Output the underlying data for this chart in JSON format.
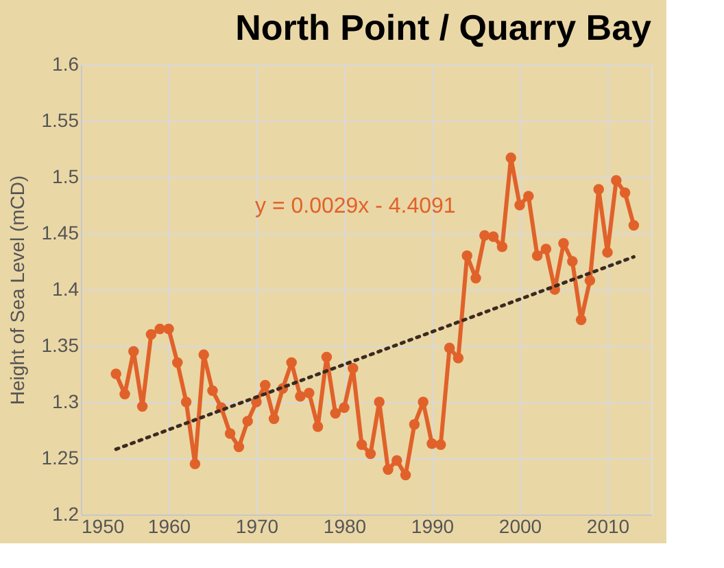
{
  "chart_data": {
    "type": "line",
    "title": "North Point / Quarry Bay",
    "ylabel": "Height of Sea Level (mCD)",
    "xlim": [
      1950,
      2015
    ],
    "xticks": [
      1950,
      1960,
      1970,
      1980,
      1990,
      2000,
      2010
    ],
    "ylim": [
      1.2,
      1.6
    ],
    "yticks": [
      1.2,
      1.25,
      1.3,
      1.35,
      1.4,
      1.45,
      1.5,
      1.55,
      1.6
    ],
    "grid": true,
    "marker": "circle",
    "annotations": [
      "y = 0.0029x - 4.4091"
    ],
    "series": [
      {
        "color": "#e0622a",
        "line_style": "solid",
        "x": [
          1954,
          1955,
          1956,
          1957,
          1958,
          1959,
          1960,
          1961,
          1962,
          1963,
          1964,
          1965,
          1966,
          1967,
          1968,
          1969,
          1970,
          1971,
          1972,
          1973,
          1974,
          1975,
          1976,
          1977,
          1978,
          1979,
          1980,
          1981,
          1982,
          1983,
          1984,
          1985,
          1986,
          1987,
          1988,
          1989,
          1990,
          1991,
          1992,
          1993,
          1994,
          1995,
          1996,
          1997,
          1998,
          1999,
          2000,
          2001,
          2002,
          2003,
          2004,
          2005,
          2006,
          2007,
          2008,
          2009,
          2010,
          2011,
          2012,
          2013
        ],
        "values": [
          1.325,
          1.307,
          1.345,
          1.296,
          1.36,
          1.365,
          1.365,
          1.335,
          1.3,
          1.245,
          1.342,
          1.31,
          1.295,
          1.272,
          1.26,
          1.283,
          1.3,
          1.315,
          1.285,
          1.312,
          1.335,
          1.305,
          1.308,
          1.278,
          1.34,
          1.29,
          1.295,
          1.33,
          1.262,
          1.254,
          1.3,
          1.24,
          1.248,
          1.235,
          1.28,
          1.3,
          1.263,
          1.262,
          1.348,
          1.339,
          1.43,
          1.41,
          1.448,
          1.447,
          1.438,
          1.517,
          1.475,
          1.483,
          1.43,
          1.436,
          1.4,
          1.441,
          1.425,
          1.373,
          1.408,
          1.489,
          1.433,
          1.497,
          1.486,
          1.457
        ]
      },
      {
        "color": "#3a2a20",
        "marker": "none",
        "line_style": "dotted",
        "x": [
          1954,
          2013
        ],
        "values": [
          1.258,
          1.429
        ]
      }
    ]
  }
}
